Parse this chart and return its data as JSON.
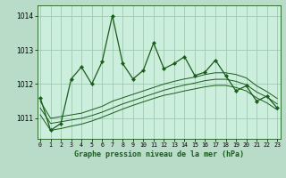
{
  "title": "Graphe pression niveau de la mer (hPa)",
  "background_color": "#b8dcc8",
  "plot_bg_color": "#cceedd",
  "line_color": "#1a5c1a",
  "grid_color": "#a0c8b0",
  "x_labels": [
    "0",
    "1",
    "2",
    "3",
    "4",
    "5",
    "6",
    "7",
    "8",
    "9",
    "10",
    "11",
    "12",
    "13",
    "14",
    "15",
    "16",
    "17",
    "18",
    "19",
    "20",
    "21",
    "22",
    "23"
  ],
  "ylim": [
    1010.4,
    1014.3
  ],
  "yticks": [
    1011,
    1012,
    1013,
    1014
  ],
  "main_series": [
    1011.6,
    1010.65,
    1010.85,
    1012.15,
    1012.5,
    1012.0,
    1012.65,
    1014.0,
    1012.6,
    1012.15,
    1012.4,
    1013.2,
    1012.45,
    1012.6,
    1012.8,
    1012.25,
    1012.35,
    1012.7,
    1012.25,
    1011.8,
    1011.95,
    1011.5,
    1011.65,
    1011.3
  ],
  "smooth_series1": [
    1011.5,
    1011.0,
    1011.05,
    1011.1,
    1011.15,
    1011.25,
    1011.35,
    1011.5,
    1011.6,
    1011.7,
    1011.8,
    1011.9,
    1012.0,
    1012.08,
    1012.15,
    1012.2,
    1012.28,
    1012.33,
    1012.33,
    1012.28,
    1012.18,
    1011.95,
    1011.78,
    1011.58
  ],
  "smooth_series2": [
    1011.3,
    1010.85,
    1010.9,
    1010.95,
    1011.0,
    1011.08,
    1011.18,
    1011.3,
    1011.42,
    1011.52,
    1011.62,
    1011.72,
    1011.82,
    1011.9,
    1011.97,
    1012.03,
    1012.1,
    1012.14,
    1012.14,
    1012.08,
    1011.98,
    1011.77,
    1011.62,
    1011.42
  ],
  "smooth_series3": [
    1011.1,
    1010.65,
    1010.7,
    1010.77,
    1010.83,
    1010.92,
    1011.03,
    1011.15,
    1011.27,
    1011.38,
    1011.48,
    1011.58,
    1011.67,
    1011.73,
    1011.8,
    1011.86,
    1011.92,
    1011.96,
    1011.96,
    1011.9,
    1011.8,
    1011.6,
    1011.45,
    1011.25
  ]
}
